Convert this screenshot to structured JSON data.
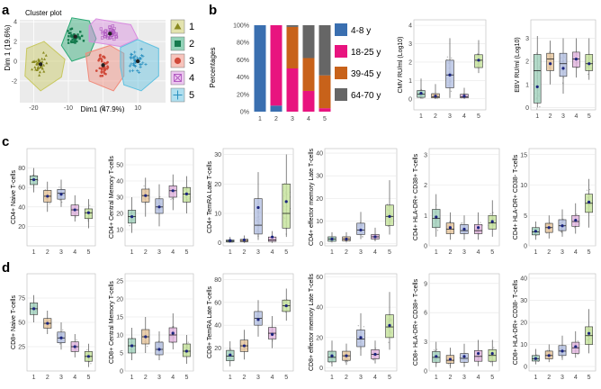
{
  "panel_labels": [
    "a",
    "b",
    "c",
    "d"
  ],
  "colors": {
    "c1": "#c8c860",
    "c2": "#2aa874",
    "c3": "#f08a7a",
    "c4": "#d98be0",
    "c5": "#5fc0e0",
    "bar_48": "#3a6fb0",
    "bar_1825": "#e8147f",
    "bar_3945": "#c8621a",
    "bar_6470": "#666666",
    "box_fills": [
      "#a6d4c0",
      "#e7c8a0",
      "#b8c4e4",
      "#e4b8e0",
      "#c8e4a0"
    ]
  },
  "chart_data": [
    {
      "type": "scatter",
      "title": "Cluster plot",
      "xlabel": "Dim1 (47.9%)",
      "ylabel": "Dim 1 (19.6%)",
      "xticks": [
        -20,
        -10,
        0,
        10
      ],
      "yticks": [
        -2,
        0,
        2,
        4
      ],
      "xlim": [
        -24,
        18
      ],
      "ylim": [
        -4.2,
        4.2
      ],
      "series": [
        {
          "name": "1",
          "marker": "triangle",
          "color_key": "c1",
          "center": [
            -18,
            -0.3
          ],
          "spread": [
            3.2,
            1.4
          ],
          "hull": [
            [
              -22,
              1.3
            ],
            [
              -17,
              2.0
            ],
            [
              -11,
              0.2
            ],
            [
              -12,
              -1.6
            ],
            [
              -18,
              -3.0
            ],
            [
              -22.5,
              -1.5
            ]
          ]
        },
        {
          "name": "2",
          "marker": "square",
          "color_key": "c2",
          "center": [
            -8,
            2.5
          ],
          "spread": [
            3,
            1.1
          ],
          "hull": [
            [
              -12,
              1.6
            ],
            [
              -9,
              4.4
            ],
            [
              -4,
              4.1
            ],
            [
              -2,
              2.3
            ],
            [
              -4,
              0.6
            ],
            [
              -9,
              0.0
            ]
          ]
        },
        {
          "name": "3",
          "marker": "circle",
          "color_key": "c3",
          "center": [
            0,
            -0.4
          ],
          "spread": [
            3,
            1.5
          ],
          "hull": [
            [
              -5,
              0.8
            ],
            [
              2,
              1.6
            ],
            [
              6,
              0.8
            ],
            [
              6,
              -1.5
            ],
            [
              3,
              -3.0
            ],
            [
              -4,
              -2.0
            ]
          ]
        },
        {
          "name": "4",
          "marker": "squarecross",
          "color_key": "c4",
          "center": [
            2,
            2.8
          ],
          "spread": [
            3.2,
            1.0
          ],
          "hull": [
            [
              -4,
              3.6
            ],
            [
              -2,
              4.3
            ],
            [
              8,
              3.7
            ],
            [
              10,
              2.3
            ],
            [
              5,
              1.5
            ],
            [
              -4,
              2.0
            ]
          ]
        },
        {
          "name": "5",
          "marker": "plus",
          "color_key": "c5",
          "center": [
            10,
            0
          ],
          "spread": [
            3,
            1.6
          ],
          "hull": [
            [
              5,
              1.4
            ],
            [
              10,
              2.2
            ],
            [
              16,
              1.3
            ],
            [
              16,
              -1.5
            ],
            [
              11,
              -3.0
            ],
            [
              6,
              -2.4
            ],
            [
              5,
              -0.6
            ]
          ]
        }
      ],
      "legend": [
        "1",
        "2",
        "3",
        "4",
        "5"
      ]
    },
    {
      "type": "bar",
      "stacked": true,
      "ylabel": "Percentages",
      "categories": [
        "1",
        "2",
        "3",
        "4",
        "5"
      ],
      "yticks": [
        "0%",
        "20%",
        "40%",
        "60%",
        "80%",
        "100%"
      ],
      "ylim": [
        0,
        100
      ],
      "series": [
        {
          "name": "4-8 y",
          "color_key": "bar_48",
          "values": [
            100,
            7,
            0,
            0,
            0
          ]
        },
        {
          "name": "18-25 y",
          "color_key": "bar_1825",
          "values": [
            0,
            93,
            50,
            24,
            4
          ]
        },
        {
          "name": "39-45 y",
          "color_key": "bar_3945",
          "values": [
            0,
            0,
            48,
            38,
            38
          ]
        },
        {
          "name": "64-70 y",
          "color_key": "bar_6470",
          "values": [
            0,
            0,
            2,
            38,
            58
          ]
        }
      ]
    },
    {
      "type": "box",
      "ylabel": "CMV RU/ml (Log10)",
      "categories": [
        "1",
        "2",
        "3",
        "4",
        "5"
      ],
      "ylim": [
        -0.6,
        4.3
      ],
      "yticks": [
        0,
        1,
        2,
        3,
        4
      ],
      "boxes": [
        [
          0,
          0.08,
          0.25,
          0.45,
          1.1
        ],
        [
          0,
          0.05,
          0.12,
          0.28,
          0.8
        ],
        [
          0.05,
          0.6,
          1.3,
          2.1,
          3.3
        ],
        [
          0,
          0.05,
          0.12,
          0.25,
          0.6
        ],
        [
          1.4,
          1.7,
          2.1,
          2.4,
          3.2
        ]
      ],
      "means": [
        0.3,
        0.15,
        1.3,
        0.15,
        2.1
      ]
    },
    {
      "type": "box",
      "ylabel": "EBV RU/ml (Log10)",
      "categories": [
        "1",
        "2",
        "3",
        "4",
        "5"
      ],
      "ylim": [
        -0.1,
        3.8
      ],
      "yticks": [
        0,
        1,
        2,
        3
      ],
      "boxes": [
        [
          0,
          0.2,
          1.6,
          2.3,
          3.1
        ],
        [
          1.0,
          1.6,
          2.1,
          2.35,
          2.9
        ],
        [
          0.6,
          1.35,
          1.9,
          2.35,
          3.0
        ],
        [
          1.3,
          1.75,
          2.1,
          2.4,
          3.0
        ],
        [
          1.2,
          1.6,
          1.9,
          2.3,
          3.0
        ]
      ],
      "means": [
        0.9,
        1.9,
        1.7,
        2.1,
        1.9
      ]
    },
    {
      "type": "box",
      "ylabel": "CD4+ Naive T-cells",
      "categories": [
        "1",
        "2",
        "3",
        "4",
        "5"
      ],
      "ylim": [
        0,
        100
      ],
      "yticks": [
        20,
        40,
        60,
        80
      ],
      "boxes": [
        [
          55,
          63,
          68,
          72,
          80
        ],
        [
          35,
          45,
          51,
          57,
          66
        ],
        [
          40,
          48,
          54,
          58,
          68
        ],
        [
          25,
          31,
          37,
          42,
          52
        ],
        [
          18,
          28,
          34,
          38,
          48
        ]
      ],
      "means": [
        68,
        51,
        53,
        37,
        34
      ]
    },
    {
      "type": "box",
      "ylabel": "CD4+ Central Memory T-cells",
      "categories": [
        "1",
        "2",
        "3",
        "4",
        "5"
      ],
      "ylim": [
        0,
        60
      ],
      "yticks": [
        10,
        20,
        30,
        40,
        50
      ],
      "boxes": [
        [
          8,
          14,
          18,
          22,
          30
        ],
        [
          18,
          27,
          31,
          35,
          42
        ],
        [
          12,
          20,
          24,
          29,
          38
        ],
        [
          22,
          30,
          34,
          37,
          44
        ],
        [
          20,
          27,
          32,
          36,
          43
        ]
      ],
      "means": [
        18,
        31,
        24,
        34,
        32
      ]
    },
    {
      "type": "box",
      "ylabel": "CD4+ TemRA Late T-cells",
      "categories": [
        "1",
        "2",
        "3",
        "4",
        "5"
      ],
      "ylim": [
        -1,
        32
      ],
      "yticks": [
        0,
        10,
        20,
        30
      ],
      "boxes": [
        [
          0,
          0.3,
          0.6,
          1,
          2
        ],
        [
          0,
          0.4,
          0.8,
          1.2,
          2.5
        ],
        [
          1,
          3,
          6,
          15,
          24
        ],
        [
          0,
          0.5,
          1,
          2,
          4
        ],
        [
          2,
          5,
          10,
          20,
          30
        ]
      ],
      "means": [
        0.8,
        1,
        12,
        2,
        14
      ]
    },
    {
      "type": "box",
      "ylabel": "CD4+ effector memory Late T-cells",
      "categories": [
        "1",
        "2",
        "3",
        "4",
        "5"
      ],
      "ylim": [
        -1,
        42
      ],
      "yticks": [
        0,
        10,
        20,
        30,
        40
      ],
      "boxes": [
        [
          0.5,
          1,
          2,
          3,
          5
        ],
        [
          0.5,
          1.2,
          2,
          3,
          5
        ],
        [
          2,
          4,
          6,
          9,
          14
        ],
        [
          1,
          2,
          3,
          4,
          7
        ],
        [
          4,
          8,
          12,
          17,
          28
        ]
      ],
      "means": [
        2,
        2,
        6,
        3,
        12
      ]
    },
    {
      "type": "box",
      "ylabel": "CD4+ HLA-DR+ CD38+ T-cells",
      "categories": [
        "1",
        "2",
        "3",
        "4",
        "5"
      ],
      "ylim": [
        0,
        3.2
      ],
      "yticks": [
        0,
        1,
        2,
        3
      ],
      "boxes": [
        [
          0.3,
          0.6,
          0.9,
          1.2,
          1.7
        ],
        [
          0.2,
          0.4,
          0.55,
          0.75,
          1.1
        ],
        [
          0.2,
          0.4,
          0.5,
          0.7,
          1.0
        ],
        [
          0.2,
          0.4,
          0.5,
          0.7,
          1.1
        ],
        [
          0.3,
          0.55,
          0.75,
          1.0,
          1.5
        ]
      ],
      "means": [
        0.95,
        0.6,
        0.55,
        0.6,
        0.8
      ]
    },
    {
      "type": "box",
      "ylabel": "CD4+ HLA-DR+ CD38- T-cells",
      "categories": [
        "1",
        "2",
        "3",
        "4",
        "5"
      ],
      "ylim": [
        0,
        16
      ],
      "yticks": [
        0,
        5,
        10,
        15
      ],
      "boxes": [
        [
          1,
          1.8,
          2.3,
          3,
          4
        ],
        [
          1.2,
          2.2,
          3,
          3.7,
          5
        ],
        [
          1.5,
          2.5,
          3.3,
          4.3,
          6
        ],
        [
          2,
          3.2,
          4,
          5,
          7
        ],
        [
          3,
          5.5,
          7,
          8.5,
          11
        ]
      ],
      "means": [
        2.4,
        3,
        3.3,
        4.2,
        7.2
      ]
    },
    {
      "type": "box",
      "ylabel": "CD8+ Naive T-cells",
      "categories": [
        "1",
        "2",
        "3",
        "4",
        "5"
      ],
      "ylim": [
        0,
        100
      ],
      "yticks": [
        25,
        50,
        75
      ],
      "boxes": [
        [
          50,
          58,
          64,
          70,
          78
        ],
        [
          38,
          44,
          49,
          54,
          62
        ],
        [
          22,
          29,
          34,
          40,
          50
        ],
        [
          14,
          20,
          25,
          30,
          38
        ],
        [
          4,
          10,
          15,
          20,
          28
        ]
      ],
      "means": [
        64,
        49,
        34,
        25,
        15
      ]
    },
    {
      "type": "box",
      "ylabel": "CD8+ Central Memory T-cells",
      "categories": [
        "1",
        "2",
        "3",
        "4",
        "5"
      ],
      "ylim": [
        0,
        27
      ],
      "yticks": [
        0,
        5,
        10,
        15,
        20,
        25
      ],
      "boxes": [
        [
          3,
          5,
          7,
          9,
          12
        ],
        [
          5,
          7.5,
          9.5,
          11.5,
          15
        ],
        [
          3,
          4.5,
          6,
          8,
          11
        ],
        [
          6,
          8,
          10,
          12,
          16
        ],
        [
          2,
          4,
          5.5,
          7.5,
          10
        ]
      ],
      "means": [
        7,
        9.5,
        6,
        10.5,
        5.5
      ]
    },
    {
      "type": "box",
      "ylabel": "CD8+ TemRA Late T-cells",
      "categories": [
        "1",
        "2",
        "3",
        "4",
        "5"
      ],
      "ylim": [
        0,
        85
      ],
      "yticks": [
        20,
        40,
        60,
        80
      ],
      "boxes": [
        [
          4,
          9,
          13,
          18,
          26
        ],
        [
          10,
          17,
          22,
          27,
          36
        ],
        [
          30,
          40,
          46,
          52,
          62
        ],
        [
          20,
          28,
          33,
          38,
          48
        ],
        [
          44,
          52,
          57,
          62,
          72
        ]
      ],
      "means": [
        14,
        22,
        45,
        32,
        57
      ]
    },
    {
      "type": "box",
      "ylabel": "CD8+ effector memory Late T-cells",
      "categories": [
        "1",
        "2",
        "3",
        "4",
        "5"
      ],
      "ylim": [
        -2,
        62
      ],
      "yticks": [
        0,
        20,
        40,
        60
      ],
      "boxes": [
        [
          1,
          4,
          7,
          11,
          18
        ],
        [
          2,
          5,
          8,
          11,
          16
        ],
        [
          8,
          14,
          19,
          25,
          36
        ],
        [
          3,
          6,
          9,
          12,
          18
        ],
        [
          12,
          20,
          27,
          35,
          50
        ]
      ],
      "means": [
        8,
        8,
        20,
        9,
        28
      ]
    },
    {
      "type": "box",
      "ylabel": "CD8+ HLA-DR+ CD38+ T-cells",
      "categories": [
        "1",
        "2",
        "3",
        "4",
        "5"
      ],
      "ylim": [
        0,
        10
      ],
      "yticks": [
        0,
        3,
        6,
        9
      ],
      "boxes": [
        [
          0.4,
          0.9,
          1.4,
          2,
          3
        ],
        [
          0.3,
          0.8,
          1.1,
          1.6,
          2.4
        ],
        [
          0.4,
          0.9,
          1.3,
          1.8,
          2.8
        ],
        [
          0.5,
          1,
          1.5,
          2.1,
          3.2
        ],
        [
          0.5,
          1,
          1.6,
          2.2,
          3.2
        ]
      ],
      "means": [
        1.5,
        1.2,
        1.5,
        1.8,
        1.8
      ]
    },
    {
      "type": "box",
      "ylabel": "CD8+ HLA-DR+ CD38- T-cells",
      "categories": [
        "1",
        "2",
        "3",
        "4",
        "5"
      ],
      "ylim": [
        -2,
        42
      ],
      "yticks": [
        0,
        10,
        20,
        30,
        40
      ],
      "boxes": [
        [
          1,
          2.5,
          3.5,
          5,
          8
        ],
        [
          2,
          3.5,
          5,
          7,
          10
        ],
        [
          3,
          5,
          7,
          9.5,
          14
        ],
        [
          4,
          6,
          8.5,
          11,
          16
        ],
        [
          6,
          10,
          14,
          18,
          26
        ]
      ],
      "means": [
        3.6,
        5,
        7,
        9,
        15
      ]
    }
  ]
}
